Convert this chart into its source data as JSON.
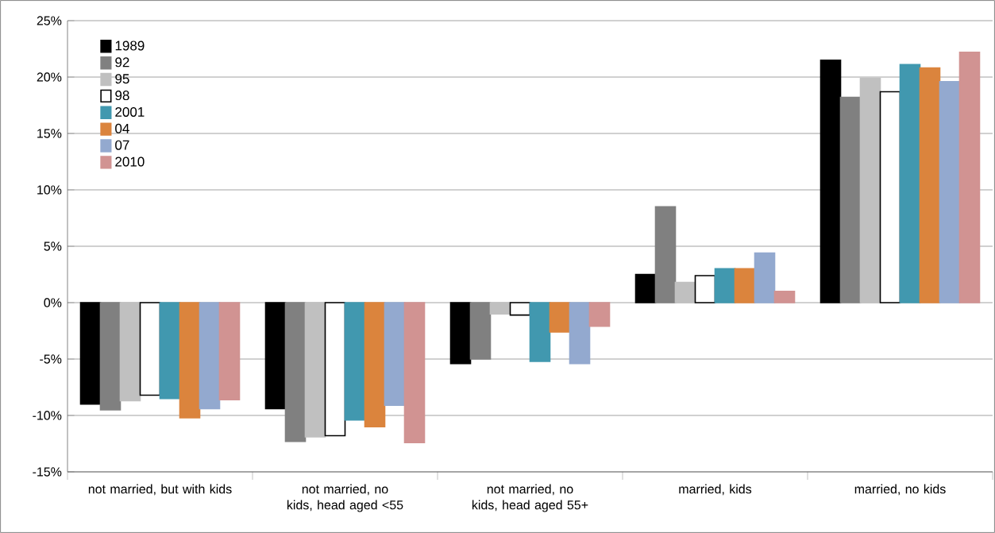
{
  "chart_data": {
    "type": "bar",
    "categories": [
      "not married, but with kids",
      "not married, no kids, head aged <55",
      "not married, no kids, head aged 55+",
      "married, kids",
      "married, no kids"
    ],
    "series": [
      {
        "name": "1989",
        "color": "#000000",
        "values": [
          -9.0,
          -9.4,
          -5.4,
          2.5,
          21.5
        ]
      },
      {
        "name": "92",
        "color": "#808080",
        "values": [
          -9.5,
          -12.3,
          -5.0,
          8.5,
          18.2
        ]
      },
      {
        "name": "95",
        "color": "#c0c0c0",
        "values": [
          -8.7,
          -11.9,
          -1.0,
          1.8,
          19.9
        ]
      },
      {
        "name": "98",
        "color": "#ffffff",
        "values": [
          -8.2,
          -11.8,
          -1.1,
          2.4,
          18.7
        ]
      },
      {
        "name": "2001",
        "color": "#4198af",
        "values": [
          -8.5,
          -10.4,
          -5.2,
          3.0,
          21.1
        ]
      },
      {
        "name": "04",
        "color": "#db843d",
        "values": [
          -10.2,
          -11.0,
          -2.6,
          3.0,
          20.8
        ]
      },
      {
        "name": "07",
        "color": "#93a9cf",
        "values": [
          -9.4,
          -9.1,
          -5.4,
          4.4,
          19.6
        ]
      },
      {
        "name": "2010",
        "color": "#d19392",
        "values": [
          -8.6,
          -12.4,
          -2.1,
          1.0,
          22.2
        ]
      }
    ],
    "ylim": [
      -15,
      25
    ],
    "yticks": [
      {
        "value": -15,
        "label": "-15%"
      },
      {
        "value": -10,
        "label": "-10%"
      },
      {
        "value": -5,
        "label": "-5%"
      },
      {
        "value": 0,
        "label": "0%"
      },
      {
        "value": 5,
        "label": "5%"
      },
      {
        "value": 10,
        "label": "10%"
      },
      {
        "value": 15,
        "label": "15%"
      },
      {
        "value": 20,
        "label": "20%"
      },
      {
        "value": 25,
        "label": "25%"
      }
    ],
    "grid": "y",
    "legend": "top left"
  }
}
